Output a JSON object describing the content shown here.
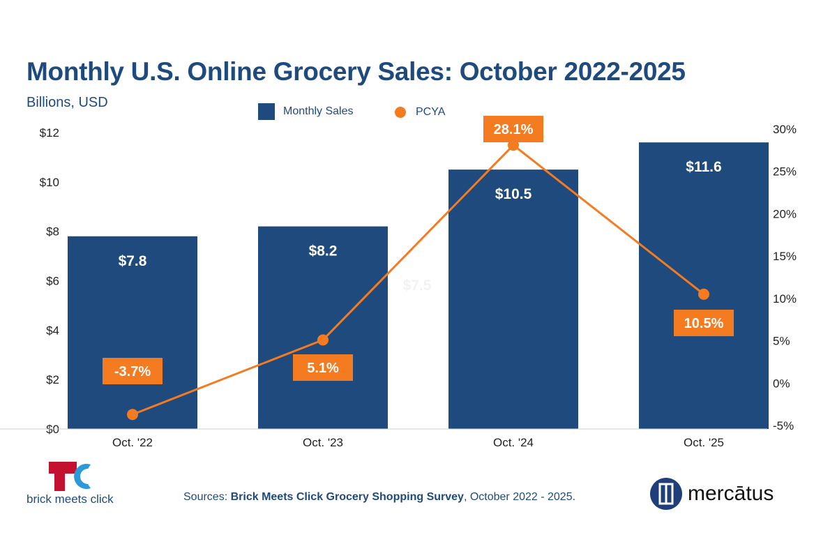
{
  "chart_data": {
    "type": "bar+line",
    "title": "Monthly U.S. Online Grocery Sales: October 2022-2025",
    "subtitle": "Billions, USD",
    "categories": [
      "Oct. '22",
      "Oct. '23",
      "Oct. '24",
      "Oct. '25"
    ],
    "series": [
      {
        "name": "Monthly Sales",
        "type": "bar",
        "axis": "left",
        "values": [
          7.8,
          8.2,
          10.5,
          11.6
        ],
        "labels": [
          "$7.8",
          "$8.2",
          "$10.5",
          "$11.6"
        ],
        "color": "#1f4a7d"
      },
      {
        "name": "PCYA",
        "type": "line",
        "axis": "right",
        "values": [
          -3.7,
          5.1,
          28.1,
          10.5
        ],
        "labels": [
          "-3.7%",
          "5.1%",
          "28.1%",
          "10.5%"
        ],
        "color": "#f47b20"
      }
    ],
    "left_axis": {
      "ylim": [
        0,
        12
      ],
      "ticks": [
        "$0",
        "$2",
        "$4",
        "$6",
        "$8",
        "$10",
        "$12"
      ]
    },
    "right_axis": {
      "ylim": [
        -5,
        30
      ],
      "ticks": [
        "-5%",
        "0%",
        "5%",
        "10%",
        "15%",
        "20%",
        "25%",
        "30%"
      ]
    },
    "grid": false,
    "legend": "top-center",
    "faint_annotation": "$7.5"
  },
  "footer": {
    "source_prefix": "Sources: ",
    "source_bold": "Brick Meets Click Grocery Shopping Survey",
    "source_suffix": ", October 2022 - 2025.",
    "logo_left": "brick meets click",
    "logo_right": "mercātus"
  }
}
